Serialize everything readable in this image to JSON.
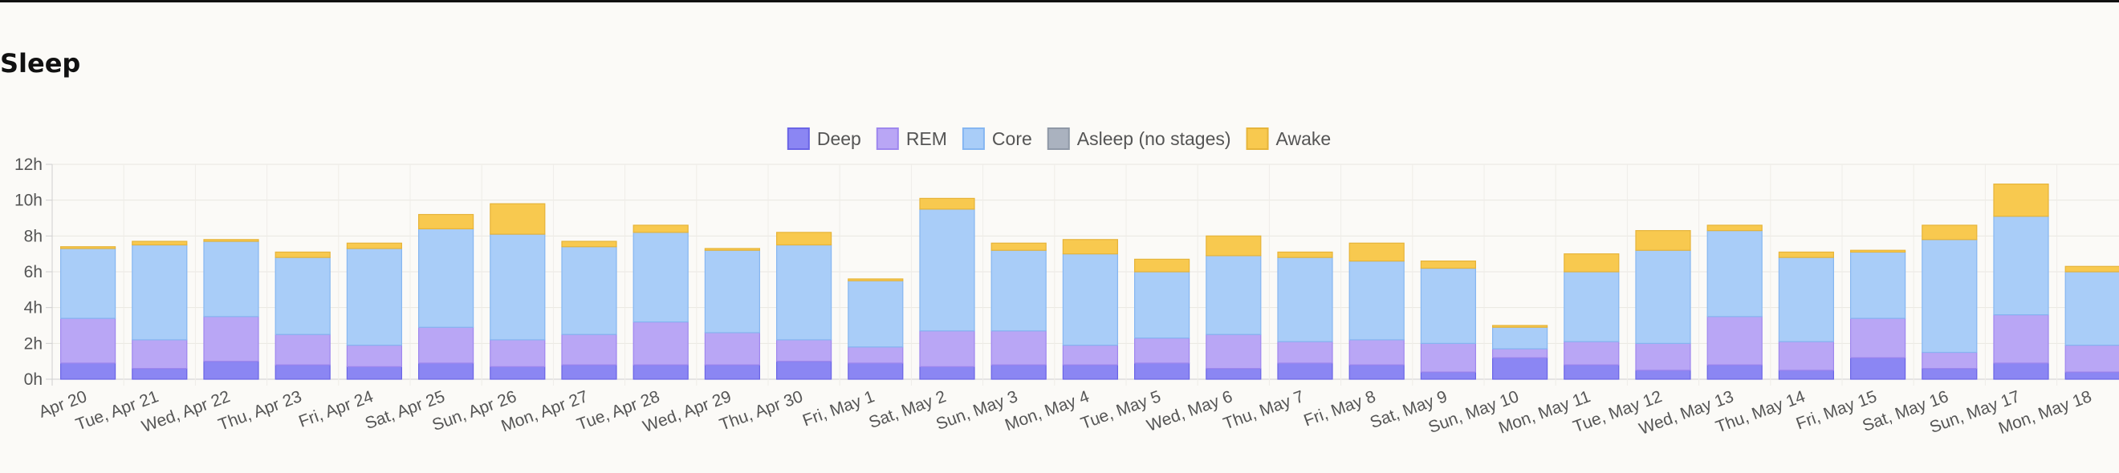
{
  "section": {
    "title": "Sleep"
  },
  "chart_data": {
    "type": "bar",
    "stacked": true,
    "title": "",
    "xlabel": "",
    "ylabel": "",
    "ylim": [
      0,
      12
    ],
    "y_ticks": [
      "0h",
      "2h",
      "4h",
      "6h",
      "8h",
      "10h",
      "12h"
    ],
    "grid": true,
    "legend_position": "top-center",
    "categories": [
      "Apr 20",
      "Tue, Apr 21",
      "Wed, Apr 22",
      "Thu, Apr 23",
      "Fri, Apr 24",
      "Sat, Apr 25",
      "Sun, Apr 26",
      "Mon, Apr 27",
      "Tue, Apr 28",
      "Wed, Apr 29",
      "Thu, Apr 30",
      "Fri, May 1",
      "Sat, May 2",
      "Sun, May 3",
      "Mon, May 4",
      "Tue, May 5",
      "Wed, May 6",
      "Thu, May 7",
      "Fri, May 8",
      "Sat, May 9",
      "Sun, May 10",
      "Mon, May 11",
      "Tue, May 12",
      "Wed, May 13",
      "Thu, May 14",
      "Fri, May 15",
      "Sat, May 16",
      "Sun, May 17",
      "Mon, May 18"
    ],
    "series": [
      {
        "name": "Deep",
        "color": "#8b86f3",
        "border": "#6a64e6",
        "values": [
          0.9,
          0.6,
          1.0,
          0.8,
          0.7,
          0.9,
          0.7,
          0.8,
          0.8,
          0.8,
          1.0,
          0.9,
          0.7,
          0.8,
          0.8,
          0.9,
          0.6,
          0.9,
          0.8,
          0.4,
          1.2,
          0.8,
          0.5,
          0.8,
          0.5,
          1.2,
          0.6,
          0.9,
          0.4
        ]
      },
      {
        "name": "REM",
        "color": "#b9a6f5",
        "border": "#9e87ee",
        "values": [
          2.5,
          1.6,
          2.5,
          1.7,
          1.2,
          2.0,
          1.5,
          1.7,
          2.4,
          1.8,
          1.2,
          0.9,
          2.0,
          1.9,
          1.1,
          1.4,
          1.9,
          1.2,
          1.4,
          1.6,
          0.5,
          1.3,
          1.5,
          2.7,
          1.6,
          2.2,
          0.9,
          2.7,
          1.5
        ]
      },
      {
        "name": "Core",
        "color": "#a9cdf8",
        "border": "#86b6f1",
        "values": [
          3.9,
          5.3,
          4.2,
          4.3,
          5.4,
          5.5,
          5.9,
          4.9,
          5.0,
          4.6,
          5.3,
          3.7,
          6.8,
          4.5,
          5.1,
          3.7,
          4.4,
          4.7,
          4.4,
          4.2,
          1.2,
          3.9,
          5.2,
          4.8,
          4.7,
          3.7,
          6.3,
          5.5,
          4.1
        ]
      },
      {
        "name": "Asleep (no stages)",
        "color": "#aab2bf",
        "border": "#8f98a6",
        "values": [
          0,
          0,
          0,
          0,
          0,
          0,
          0,
          0,
          0,
          0,
          0,
          0,
          0,
          0,
          0,
          0,
          0,
          0,
          0,
          0,
          0,
          0,
          0,
          0,
          0,
          0,
          0,
          0,
          0
        ]
      },
      {
        "name": "Awake",
        "color": "#f8c94f",
        "border": "#e6b43a",
        "values": [
          0.1,
          0.2,
          0.1,
          0.3,
          0.3,
          0.8,
          1.7,
          0.3,
          0.4,
          0.1,
          0.7,
          0.1,
          0.6,
          0.4,
          0.8,
          0.7,
          1.1,
          0.3,
          1.0,
          0.4,
          0.1,
          1.0,
          1.1,
          0.3,
          0.3,
          0.1,
          0.8,
          1.8,
          0.3
        ]
      }
    ]
  }
}
